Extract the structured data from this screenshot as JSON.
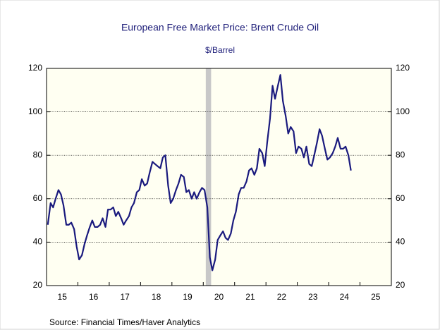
{
  "chart_data": {
    "type": "line",
    "title": "European Free Market Price: Brent Crude Oil",
    "subtitle": "$/Barrel",
    "source": "Source:  Financial Times/Haver Analytics",
    "x": [
      2015.04,
      2015.13,
      2015.21,
      2015.29,
      2015.38,
      2015.46,
      2015.54,
      2015.63,
      2015.71,
      2015.79,
      2015.88,
      2015.96,
      2016.04,
      2016.13,
      2016.21,
      2016.29,
      2016.38,
      2016.46,
      2016.54,
      2016.63,
      2016.71,
      2016.79,
      2016.88,
      2016.96,
      2017.04,
      2017.13,
      2017.21,
      2017.29,
      2017.38,
      2017.46,
      2017.54,
      2017.63,
      2017.71,
      2017.79,
      2017.88,
      2017.96,
      2018.04,
      2018.13,
      2018.21,
      2018.29,
      2018.38,
      2018.46,
      2018.54,
      2018.63,
      2018.71,
      2018.79,
      2018.88,
      2018.96,
      2019.04,
      2019.13,
      2019.21,
      2019.29,
      2019.38,
      2019.46,
      2019.54,
      2019.63,
      2019.71,
      2019.79,
      2019.88,
      2019.96,
      2020.04,
      2020.13,
      2020.21,
      2020.29,
      2020.38,
      2020.46,
      2020.54,
      2020.63,
      2020.71,
      2020.79,
      2020.88,
      2020.96,
      2021.04,
      2021.13,
      2021.21,
      2021.29,
      2021.38,
      2021.46,
      2021.54,
      2021.63,
      2021.71,
      2021.79,
      2021.88,
      2021.96,
      2022.04,
      2022.13,
      2022.21,
      2022.29,
      2022.38,
      2022.46,
      2022.54,
      2022.63,
      2022.71,
      2022.79,
      2022.88,
      2022.96,
      2023.04,
      2023.13,
      2023.21,
      2023.29,
      2023.38,
      2023.46,
      2023.54,
      2023.63,
      2023.71,
      2023.79,
      2023.88,
      2023.96,
      2024.04,
      2024.13,
      2024.21,
      2024.29,
      2024.38,
      2024.46,
      2024.54,
      2024.63,
      2024.71
    ],
    "series": [
      {
        "name": "Brent Crude Oil",
        "color": "#1a1a7e",
        "values": [
          48,
          58,
          56,
          60,
          64,
          62,
          57,
          48,
          48,
          49,
          46,
          38,
          32,
          34,
          39,
          43,
          47,
          50,
          47,
          47,
          48,
          51,
          47,
          55,
          55,
          56,
          52,
          54,
          51,
          48,
          50,
          52,
          56,
          58,
          63,
          64,
          69,
          66,
          67,
          72,
          77,
          76,
          75,
          74,
          79,
          80,
          66,
          58,
          60,
          64,
          67,
          71,
          70,
          63,
          64,
          60,
          63,
          60,
          63,
          65,
          64,
          56,
          33,
          27,
          32,
          41,
          43,
          45,
          42,
          41,
          44,
          50,
          54,
          62,
          65,
          65,
          68,
          73,
          74,
          71,
          74,
          83,
          81,
          75,
          86,
          97,
          112,
          106,
          112,
          117,
          105,
          98,
          90,
          93,
          91,
          81,
          84,
          83,
          79,
          84,
          76,
          75,
          80,
          86,
          92,
          89,
          83,
          78,
          79,
          81,
          84,
          88,
          83,
          83,
          84,
          80,
          73
        ]
      }
    ],
    "shading": [
      2020.08,
      2020.25
    ],
    "xlim": [
      2015,
      2026
    ],
    "xticks": [
      {
        "value": 2015.5,
        "label": "15"
      },
      {
        "value": 2016.5,
        "label": "16"
      },
      {
        "value": 2017.5,
        "label": "17"
      },
      {
        "value": 2018.5,
        "label": "18"
      },
      {
        "value": 2019.5,
        "label": "19"
      },
      {
        "value": 2020.5,
        "label": "20"
      },
      {
        "value": 2021.5,
        "label": "21"
      },
      {
        "value": 2022.5,
        "label": "22"
      },
      {
        "value": 2023.5,
        "label": "23"
      },
      {
        "value": 2024.5,
        "label": "24"
      },
      {
        "value": 2025.5,
        "label": "25"
      }
    ],
    "ylim": [
      20,
      120
    ],
    "yticks": [
      20,
      40,
      60,
      80,
      100,
      120
    ],
    "y2lim": [
      20,
      120
    ],
    "y2ticks": [
      20,
      40,
      60,
      80,
      100,
      120
    ],
    "grid": true
  }
}
